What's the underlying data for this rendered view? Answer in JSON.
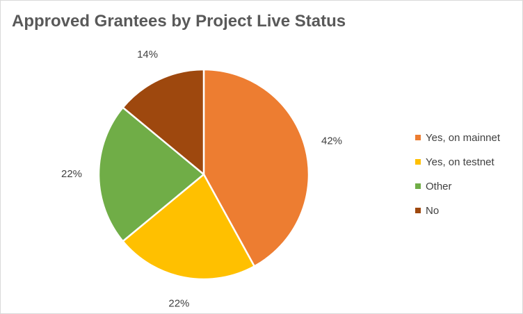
{
  "chart_data": {
    "type": "pie",
    "title": "Approved Grantees by Project Live Status",
    "categories": [
      "Yes, on mainnet",
      "Yes, on testnet",
      "Other",
      "No"
    ],
    "values": [
      42,
      22,
      22,
      14
    ],
    "labels": [
      "42%",
      "22%",
      "22%",
      "14%"
    ],
    "colors": [
      "#ED7D31",
      "#FFC000",
      "#70AD47",
      "#9E480E"
    ],
    "legend_position": "right"
  }
}
